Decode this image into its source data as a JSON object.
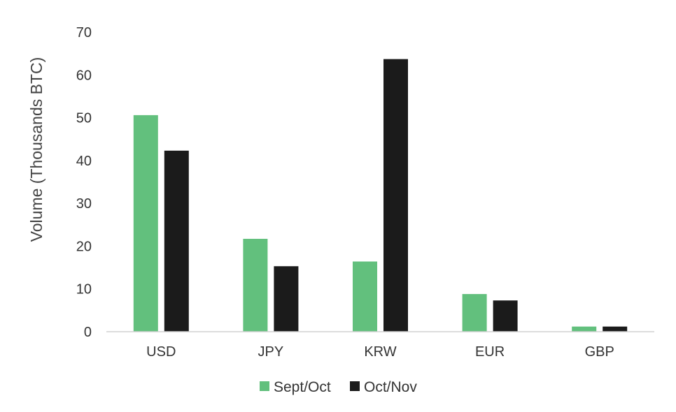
{
  "chart_data": {
    "type": "bar",
    "title": "",
    "xlabel": "",
    "ylabel": "Volume (Thousands BTC)",
    "ylim": [
      0,
      70
    ],
    "yticks": [
      0,
      10,
      20,
      30,
      40,
      50,
      60,
      70
    ],
    "grid": false,
    "legend_position": "bottom",
    "categories": [
      "USD",
      "JPY",
      "KRW",
      "EUR",
      "GBP"
    ],
    "series": [
      {
        "name": "Sept/Oct",
        "color": "#62c07d",
        "values": [
          50.6,
          21.7,
          16.4,
          8.8,
          1.2
        ]
      },
      {
        "name": "Oct/Nov",
        "color": "#1b1b1b",
        "values": [
          42.3,
          15.3,
          63.7,
          7.3,
          1.2
        ]
      }
    ]
  }
}
